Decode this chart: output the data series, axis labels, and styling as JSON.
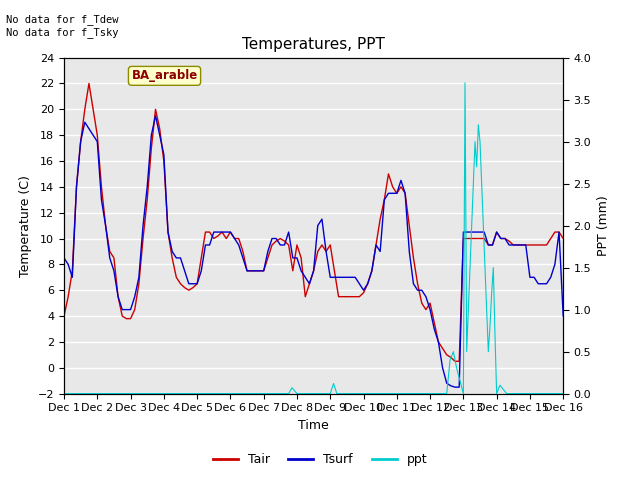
{
  "title": "Temperatures, PPT",
  "xlabel": "Time",
  "ylabel_left": "Temperature (C)",
  "ylabel_right": "PPT (mm)",
  "annotation_top": "No data for f_Tdew\nNo data for f_Tsky",
  "location_label": "BA_arable",
  "ylim_left": [
    -2,
    24
  ],
  "ylim_right": [
    0.0,
    4.0
  ],
  "yticks_left": [
    -2,
    0,
    2,
    4,
    6,
    8,
    10,
    12,
    14,
    16,
    18,
    20,
    22,
    24
  ],
  "yticks_right": [
    0.0,
    0.5,
    1.0,
    1.5,
    2.0,
    2.5,
    3.0,
    3.5,
    4.0
  ],
  "fig_facecolor": "#ffffff",
  "axes_facecolor": "#e8e8e8",
  "grid_color": "#ffffff",
  "tair_color": "#cc0000",
  "tsurf_color": "#0000cc",
  "ppt_color": "#00cccc",
  "xtick_labels": [
    "Dec 1",
    "Dec 2",
    "Dec 3",
    "Dec 4",
    "Dec 5",
    "Dec 6",
    "Dec 7",
    "Dec 8",
    "Dec 9",
    "Dec 10",
    "Dec 11",
    "Dec 12",
    "Dec 13",
    "Dec 14",
    "Dec 15",
    "Dec 16"
  ],
  "x_tair": [
    0,
    0.125,
    0.25,
    0.375,
    0.5,
    0.625,
    0.75,
    0.875,
    1.0,
    1.125,
    1.25,
    1.375,
    1.5,
    1.625,
    1.75,
    1.875,
    2.0,
    2.125,
    2.25,
    2.375,
    2.5,
    2.625,
    2.75,
    2.875,
    3.0,
    3.125,
    3.25,
    3.375,
    3.5,
    3.625,
    3.75,
    3.875,
    4.0,
    4.125,
    4.25,
    4.375,
    4.5,
    4.625,
    4.75,
    4.875,
    5.0,
    5.125,
    5.25,
    5.375,
    5.5,
    5.625,
    5.75,
    5.875,
    6.0,
    6.125,
    6.25,
    6.375,
    6.5,
    6.625,
    6.75,
    6.875,
    7.0,
    7.125,
    7.25,
    7.375,
    7.5,
    7.625,
    7.75,
    7.875,
    8.0,
    8.125,
    8.25,
    8.375,
    8.5,
    8.625,
    8.75,
    8.875,
    9.0,
    9.125,
    9.25,
    9.375,
    9.5,
    9.625,
    9.75,
    9.875,
    10.0,
    10.125,
    10.25,
    10.375,
    10.5,
    10.625,
    10.75,
    10.875,
    11.0,
    11.125,
    11.25,
    11.375,
    11.5,
    11.625,
    11.75,
    11.875,
    12.0,
    12.125,
    12.25,
    12.375,
    12.5,
    12.625,
    12.75,
    12.875,
    13.0,
    13.125,
    13.25,
    13.375,
    13.5,
    13.625,
    13.75,
    13.875,
    14.0,
    14.125,
    14.25,
    14.375,
    14.5,
    14.625,
    14.75,
    14.875,
    15.0
  ],
  "y_tair": [
    4.0,
    5.5,
    7.5,
    14.0,
    17.5,
    20.0,
    22.0,
    20.0,
    18.0,
    14.0,
    11.0,
    9.0,
    8.5,
    5.5,
    4.0,
    3.8,
    3.8,
    4.5,
    6.5,
    10.0,
    13.0,
    17.0,
    20.0,
    18.5,
    16.0,
    10.5,
    8.5,
    7.0,
    6.5,
    6.2,
    6.0,
    6.2,
    6.5,
    8.5,
    10.5,
    10.5,
    10.0,
    10.2,
    10.5,
    10.0,
    10.5,
    10.0,
    10.0,
    9.0,
    7.5,
    7.5,
    7.5,
    7.5,
    7.5,
    8.5,
    9.5,
    9.8,
    10.0,
    9.8,
    9.5,
    7.5,
    9.5,
    8.5,
    5.5,
    6.5,
    7.5,
    9.0,
    9.5,
    9.0,
    9.5,
    7.5,
    5.5,
    5.5,
    5.5,
    5.5,
    5.5,
    5.5,
    5.8,
    6.5,
    7.5,
    9.5,
    11.5,
    13.0,
    15.0,
    14.0,
    13.5,
    14.0,
    13.5,
    11.0,
    8.5,
    6.5,
    5.0,
    4.5,
    5.0,
    3.5,
    2.0,
    1.5,
    1.0,
    0.8,
    0.5,
    0.5,
    10.0,
    10.0,
    10.0,
    10.0,
    10.0,
    10.0,
    9.5,
    9.5,
    10.5,
    10.0,
    10.0,
    9.8,
    9.5,
    9.5,
    9.5,
    9.5,
    9.5,
    9.5,
    9.5,
    9.5,
    9.5,
    10.0,
    10.5,
    10.5,
    10.0
  ],
  "x_tsurf": [
    0,
    0.125,
    0.25,
    0.375,
    0.5,
    0.625,
    0.75,
    0.875,
    1.0,
    1.125,
    1.25,
    1.375,
    1.5,
    1.625,
    1.75,
    1.875,
    2.0,
    2.125,
    2.25,
    2.375,
    2.5,
    2.625,
    2.75,
    2.875,
    3.0,
    3.125,
    3.25,
    3.375,
    3.5,
    3.625,
    3.75,
    3.875,
    4.0,
    4.125,
    4.25,
    4.375,
    4.5,
    4.625,
    4.75,
    4.875,
    5.0,
    5.125,
    5.25,
    5.375,
    5.5,
    5.625,
    5.75,
    5.875,
    6.0,
    6.125,
    6.25,
    6.375,
    6.5,
    6.625,
    6.75,
    6.875,
    7.0,
    7.125,
    7.25,
    7.375,
    7.5,
    7.625,
    7.75,
    7.875,
    8.0,
    8.125,
    8.25,
    8.375,
    8.5,
    8.625,
    8.75,
    8.875,
    9.0,
    9.125,
    9.25,
    9.375,
    9.5,
    9.625,
    9.75,
    9.875,
    10.0,
    10.125,
    10.25,
    10.375,
    10.5,
    10.625,
    10.75,
    10.875,
    11.0,
    11.125,
    11.25,
    11.375,
    11.5,
    11.625,
    11.75,
    11.875,
    12.0,
    12.125,
    12.25,
    12.375,
    12.5,
    12.625,
    12.75,
    12.875,
    13.0,
    13.125,
    13.25,
    13.375,
    13.5,
    13.625,
    13.75,
    13.875,
    14.0,
    14.125,
    14.25,
    14.375,
    14.5,
    14.625,
    14.75,
    14.875,
    15.0
  ],
  "y_tsurf": [
    8.5,
    8.0,
    7.0,
    14.0,
    17.5,
    19.0,
    18.5,
    18.0,
    17.5,
    13.0,
    11.0,
    8.5,
    7.5,
    5.5,
    4.5,
    4.5,
    4.5,
    5.5,
    7.0,
    11.0,
    14.0,
    18.0,
    19.5,
    18.0,
    16.5,
    10.5,
    9.0,
    8.5,
    8.5,
    7.5,
    6.5,
    6.5,
    6.5,
    7.5,
    9.5,
    9.5,
    10.5,
    10.5,
    10.5,
    10.5,
    10.5,
    10.0,
    9.5,
    8.5,
    7.5,
    7.5,
    7.5,
    7.5,
    7.5,
    9.0,
    10.0,
    10.0,
    9.5,
    9.5,
    10.5,
    8.5,
    8.5,
    7.5,
    7.0,
    6.5,
    7.5,
    11.0,
    11.5,
    9.0,
    7.0,
    7.0,
    7.0,
    7.0,
    7.0,
    7.0,
    7.0,
    6.5,
    6.0,
    6.5,
    7.5,
    9.5,
    9.0,
    13.0,
    13.5,
    13.5,
    13.5,
    14.5,
    13.5,
    9.0,
    6.5,
    6.0,
    6.0,
    5.5,
    4.5,
    3.0,
    2.0,
    0.0,
    -1.2,
    -1.4,
    -1.5,
    -1.5,
    10.5,
    10.5,
    10.5,
    10.5,
    10.5,
    10.5,
    9.5,
    9.5,
    10.5,
    10.0,
    10.0,
    9.5,
    9.5,
    9.5,
    9.5,
    9.5,
    7.0,
    7.0,
    6.5,
    6.5,
    6.5,
    7.0,
    8.0,
    10.5,
    4.0
  ],
  "x_ppt": [
    0,
    1.0,
    2.0,
    3.0,
    4.0,
    5.0,
    6.0,
    6.75,
    6.85,
    7.0,
    7.5,
    8.0,
    8.1,
    8.2,
    8.5,
    9.0,
    10.0,
    11.0,
    11.5,
    11.6,
    11.7,
    11.8,
    11.9,
    12.0,
    12.05,
    12.1,
    12.15,
    12.2,
    12.25,
    12.3,
    12.35,
    12.4,
    12.45,
    12.5,
    12.55,
    12.6,
    12.65,
    12.7,
    12.75,
    12.8,
    12.85,
    12.9,
    12.95,
    13.0,
    13.1,
    13.2,
    13.3,
    13.5,
    14.0,
    14.5,
    15.0
  ],
  "y_ppt": [
    0,
    0,
    0,
    0,
    0,
    0,
    0,
    0,
    0.07,
    0,
    0,
    0,
    0.12,
    0,
    0,
    0,
    0,
    0,
    0,
    0.4,
    0.5,
    0.3,
    0.15,
    0,
    3.7,
    0.5,
    1.0,
    1.5,
    2.0,
    2.5,
    3.0,
    2.7,
    3.2,
    3.0,
    2.5,
    2.0,
    1.5,
    1.0,
    0.5,
    0.8,
    1.2,
    1.5,
    0.7,
    0,
    0.1,
    0.05,
    0,
    0,
    0,
    0,
    0
  ]
}
